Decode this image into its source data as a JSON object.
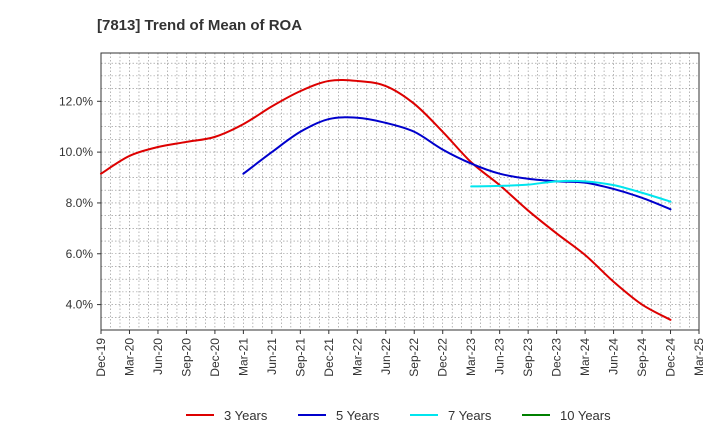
{
  "chart_data": {
    "type": "line",
    "title": "[7813]  Trend of Mean of ROA",
    "xlabel": "",
    "ylabel": "",
    "x": [
      "Dec-19",
      "Mar-20",
      "Jun-20",
      "Sep-20",
      "Dec-20",
      "Mar-21",
      "Jun-21",
      "Sep-21",
      "Dec-21",
      "Mar-22",
      "Jun-22",
      "Sep-22",
      "Dec-22",
      "Mar-23",
      "Jun-23",
      "Sep-23",
      "Dec-23",
      "Mar-24",
      "Jun-24",
      "Sep-24",
      "Dec-24",
      "Mar-25"
    ],
    "ylim": [
      3.0,
      13.9
    ],
    "yticks": [
      4.0,
      6.0,
      8.0,
      10.0,
      12.0
    ],
    "ytick_labels": [
      "4.0%",
      "6.0%",
      "8.0%",
      "10.0%",
      "12.0%"
    ],
    "grid": true,
    "legend_position": "bottom",
    "series": [
      {
        "name": "3 Years",
        "color": "#dd0000",
        "values": [
          9.15,
          9.85,
          10.2,
          10.4,
          10.6,
          11.1,
          11.8,
          12.4,
          12.8,
          12.8,
          12.6,
          11.9,
          10.8,
          9.6,
          8.7,
          7.7,
          6.8,
          5.95,
          4.9,
          4.0,
          3.4,
          null
        ]
      },
      {
        "name": "5 Years",
        "color": "#0000cc",
        "values": [
          null,
          null,
          null,
          null,
          null,
          9.15,
          10.0,
          10.8,
          11.3,
          11.35,
          11.15,
          10.8,
          10.1,
          9.55,
          9.15,
          8.95,
          8.85,
          8.8,
          8.55,
          8.2,
          7.75,
          null
        ]
      },
      {
        "name": "7 Years",
        "color": "#00e5ee",
        "values": [
          null,
          null,
          null,
          null,
          null,
          null,
          null,
          null,
          null,
          null,
          null,
          null,
          null,
          8.65,
          8.67,
          8.72,
          8.85,
          8.85,
          8.7,
          8.4,
          8.05,
          null
        ]
      },
      {
        "name": "10 Years",
        "color": "#008000",
        "values": [
          null,
          null,
          null,
          null,
          null,
          null,
          null,
          null,
          null,
          null,
          null,
          null,
          null,
          null,
          null,
          null,
          null,
          null,
          null,
          null,
          null,
          null
        ]
      }
    ]
  }
}
